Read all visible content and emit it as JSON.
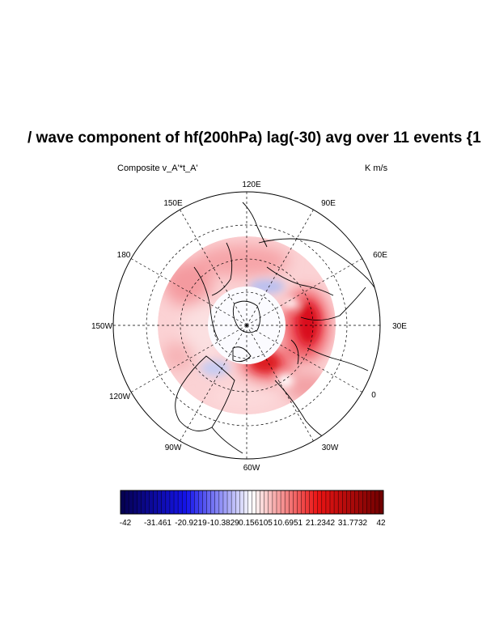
{
  "title": "/ wave component of hf(200hPa) lag(-30) avg over 11 events {1",
  "left_string": "Composite  v_A'*t_A'",
  "right_string": "K m/s",
  "longitude_labels": [
    "120E",
    "90E",
    "60E",
    "30E",
    "0",
    "30W",
    "60W",
    "90W",
    "120W",
    "150W",
    "180",
    "150E"
  ],
  "colorbar": {
    "labels": [
      "-42",
      "-31.461",
      "-20.9219",
      "-10.3829",
      "0.156105",
      "10.6951",
      "21.2342",
      "31.7732",
      "42"
    ],
    "min_color": "#05004e",
    "mid_color": "#ffffff",
    "max_color": "#6e0000"
  },
  "colors": {
    "positive": "#e8121a",
    "negative": "#3a4ad8"
  }
}
